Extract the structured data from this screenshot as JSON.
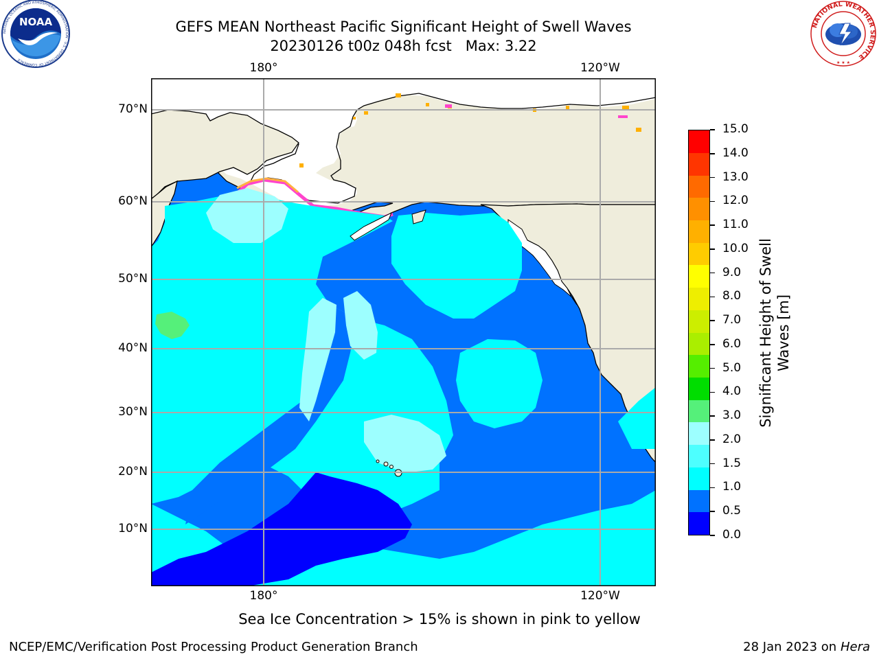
{
  "title": {
    "line1": "GEFS MEAN Northeast Pacific Significant Height of Swell Waves",
    "line2": "20230126 t00z 048h fcst   Max: 3.22"
  },
  "logos": {
    "left": {
      "text": "NOAA",
      "icon": "noaa-logo",
      "ring_text": "NATIONAL OCEANIC AND ATMOSPHERIC ADMINISTRATION · U.S. DEPARTMENT OF COMMERCE"
    },
    "right": {
      "icon": "national-weather-service-logo",
      "ring_text": "NATIONAL WEATHER SERVICE"
    }
  },
  "map": {
    "lat_ticks": [
      "70°N",
      "60°N",
      "50°N",
      "40°N",
      "30°N",
      "20°N",
      "10°N"
    ],
    "lon_ticks_top": [
      "180°",
      "120°W"
    ],
    "lon_ticks_bottom": [
      "180°",
      "120°W"
    ],
    "colors": {
      "land": "#efeddc",
      "ice_pink": "#ff44cc",
      "ice_orange": "#ffb000",
      "grid": "#aaaaaa"
    }
  },
  "colorbar": {
    "label_line1": "Significant Height of Swell",
    "label_line2": "Waves [m]",
    "tick_labels": [
      "15.0",
      "14.0",
      "13.0",
      "12.0",
      "11.0",
      "10.0",
      "9.0",
      "8.0",
      "7.0",
      "6.0",
      "5.0",
      "4.0",
      "3.0",
      "2.0",
      "1.5",
      "1.0",
      "0.5",
      "0.0"
    ],
    "colors_bottom_to_top": [
      "#0000ff",
      "#0072ff",
      "#00ffff",
      "#4dffff",
      "#9dffff",
      "#55f07a",
      "#00dd00",
      "#55ee00",
      "#aaee00",
      "#ccee00",
      "#eeee00",
      "#ffff00",
      "#ffcc00",
      "#ffb000",
      "#ff9000",
      "#ff6a00",
      "#ff3500",
      "#ff0000"
    ]
  },
  "subtitle": "Sea Ice Concentration > 15% is shown in pink to yellow",
  "footer": {
    "left": "NCEP/EMC/Verification Post Processing Product Generation Branch",
    "right_date": "28 Jan 2023 on",
    "right_host": "Hera"
  }
}
